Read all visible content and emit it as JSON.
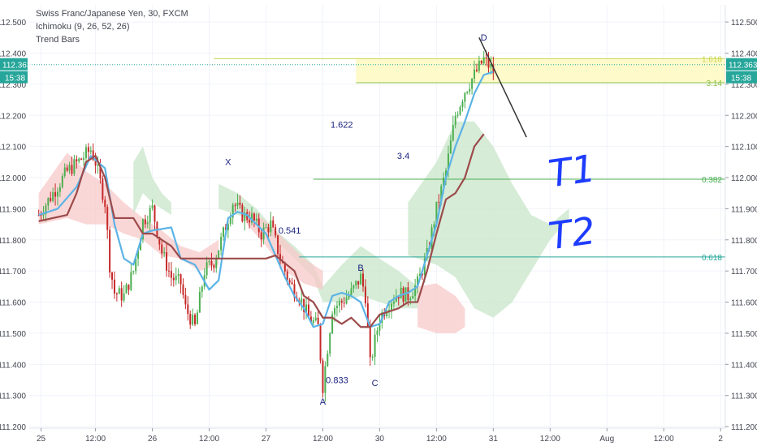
{
  "chart_data": {
    "type": "candlestick",
    "title": "Swiss Franc/Japanese Yen, 30, FXCM",
    "indicators": [
      "Ichimoku (9, 26, 52, 26)",
      "Trend Bars"
    ],
    "ylim": [
      111.195,
      112.555
    ],
    "y_ticks": [
      111.2,
      111.3,
      111.4,
      111.5,
      111.6,
      111.7,
      111.8,
      111.9,
      112.0,
      112.1,
      112.2,
      112.3,
      112.4,
      112.5
    ],
    "y_tick_labels": [
      "111.200",
      "111.300",
      "111.400",
      "111.500",
      "111.600",
      "111.700",
      "111.800",
      "111.900",
      "112.000",
      "112.100",
      "112.200",
      "112.300",
      "112.400",
      "112.500"
    ],
    "x_ticks": [
      {
        "label": "25",
        "t": 0.5
      },
      {
        "label": "12:00",
        "t": 12
      },
      {
        "label": "26",
        "t": 24
      },
      {
        "label": "12:00",
        "t": 36
      },
      {
        "label": "27",
        "t": 48
      },
      {
        "label": "12:00",
        "t": 60
      },
      {
        "label": "30",
        "t": 72
      },
      {
        "label": "12:00",
        "t": 84
      },
      {
        "label": "31",
        "t": 96
      },
      {
        "label": "12:00",
        "t": 108
      },
      {
        "label": "Aug",
        "t": 120
      },
      {
        "label": "12:00",
        "t": 132
      },
      {
        "label": "2",
        "t": 144
      }
    ],
    "xlim": [
      -2,
      145
    ],
    "current_price": {
      "value": 112.363,
      "label": "112.363",
      "time_label": "15:38",
      "color": "#26a69a"
    },
    "series": [
      {
        "name": "tenkan",
        "color": "#5cb3e6",
        "points": [
          [
            0,
            111.88
          ],
          [
            4,
            111.9
          ],
          [
            8,
            111.97
          ],
          [
            11,
            112.07
          ],
          [
            14,
            112.03
          ],
          [
            16,
            111.85
          ],
          [
            18,
            111.74
          ],
          [
            20,
            111.72
          ],
          [
            22,
            111.82
          ],
          [
            24,
            111.83
          ],
          [
            28,
            111.84
          ],
          [
            30,
            111.74
          ],
          [
            33,
            111.72
          ],
          [
            36,
            111.64
          ],
          [
            38,
            111.67
          ],
          [
            40,
            111.87
          ],
          [
            42,
            111.89
          ],
          [
            44,
            111.88
          ],
          [
            46,
            111.85
          ],
          [
            48,
            111.82
          ],
          [
            50,
            111.75
          ],
          [
            52,
            111.68
          ],
          [
            54,
            111.62
          ],
          [
            56,
            111.58
          ],
          [
            58,
            111.52
          ],
          [
            60,
            111.53
          ],
          [
            62,
            111.62
          ],
          [
            64,
            111.63
          ],
          [
            66,
            111.62
          ],
          [
            68,
            111.6
          ],
          [
            70,
            111.52
          ],
          [
            72,
            111.53
          ],
          [
            74,
            111.6
          ],
          [
            76,
            111.62
          ],
          [
            78,
            111.63
          ],
          [
            80,
            111.65
          ],
          [
            82,
            111.75
          ],
          [
            84,
            111.85
          ],
          [
            86,
            112.0
          ],
          [
            88,
            112.1
          ],
          [
            90,
            112.18
          ],
          [
            92,
            112.27
          ],
          [
            94,
            112.33
          ],
          [
            96,
            112.34
          ]
        ]
      },
      {
        "name": "kijun",
        "color": "#9c4a4a",
        "points": [
          [
            0,
            111.86
          ],
          [
            6,
            111.88
          ],
          [
            8,
            111.95
          ],
          [
            10,
            112.05
          ],
          [
            12,
            112.07
          ],
          [
            14,
            112.0
          ],
          [
            16,
            111.87
          ],
          [
            20,
            111.87
          ],
          [
            22,
            111.82
          ],
          [
            24,
            111.82
          ],
          [
            28,
            111.78
          ],
          [
            30,
            111.74
          ],
          [
            34,
            111.74
          ],
          [
            38,
            111.74
          ],
          [
            40,
            111.74
          ],
          [
            44,
            111.74
          ],
          [
            48,
            111.74
          ],
          [
            50,
            111.75
          ],
          [
            54,
            111.7
          ],
          [
            56,
            111.62
          ],
          [
            58,
            111.6
          ],
          [
            60,
            111.55
          ],
          [
            62,
            111.55
          ],
          [
            64,
            111.53
          ],
          [
            66,
            111.55
          ],
          [
            68,
            111.52
          ],
          [
            70,
            111.52
          ],
          [
            72,
            111.56
          ],
          [
            76,
            111.58
          ],
          [
            78,
            111.6
          ],
          [
            80,
            111.6
          ],
          [
            82,
            111.7
          ],
          [
            84,
            111.82
          ],
          [
            86,
            111.93
          ],
          [
            88,
            111.95
          ],
          [
            90,
            112.0
          ],
          [
            92,
            112.1
          ],
          [
            94,
            112.14
          ]
        ]
      }
    ],
    "cloud": {
      "bull_color": "#c8e6c9",
      "bear_color": "#f8c9c9",
      "segments": [
        {
          "kind": "bear",
          "top": [
            [
              0,
              111.95
            ],
            [
              6,
              112.08
            ],
            [
              10,
              112.02
            ],
            [
              14,
              111.98
            ],
            [
              18,
              111.92
            ],
            [
              22,
              111.87
            ],
            [
              26,
              111.83
            ],
            [
              30,
              111.78
            ],
            [
              34,
              111.76
            ],
            [
              38,
              111.8
            ]
          ],
          "bottom": [
            [
              0,
              111.85
            ],
            [
              6,
              111.87
            ],
            [
              10,
              111.85
            ],
            [
              14,
              111.85
            ],
            [
              18,
              111.82
            ],
            [
              22,
              111.8
            ],
            [
              26,
              111.75
            ],
            [
              30,
              111.74
            ],
            [
              34,
              111.7
            ],
            [
              38,
              111.72
            ]
          ]
        },
        {
          "kind": "bull",
          "top": [
            [
              20,
              112.05
            ],
            [
              22,
              112.1
            ],
            [
              24,
              112.0
            ],
            [
              26,
              111.95
            ],
            [
              28,
              111.92
            ]
          ],
          "bottom": [
            [
              20,
              111.88
            ],
            [
              22,
              111.95
            ],
            [
              24,
              111.92
            ],
            [
              26,
              111.9
            ],
            [
              28,
              111.88
            ]
          ]
        },
        {
          "kind": "bull",
          "top": [
            [
              38,
              111.98
            ],
            [
              42,
              111.95
            ],
            [
              46,
              111.9
            ],
            [
              50,
              111.83
            ],
            [
              54,
              111.78
            ],
            [
              58,
              111.72
            ],
            [
              60,
              111.65
            ]
          ],
          "bottom": [
            [
              38,
              111.9
            ],
            [
              42,
              111.88
            ],
            [
              46,
              111.86
            ],
            [
              50,
              111.8
            ],
            [
              54,
              111.74
            ],
            [
              58,
              111.68
            ],
            [
              60,
              111.6
            ]
          ]
        },
        {
          "kind": "bear",
          "top": [
            [
              44,
              111.9
            ],
            [
              48,
              111.86
            ],
            [
              52,
              111.8
            ],
            [
              56,
              111.74
            ],
            [
              60,
              111.7
            ]
          ],
          "bottom": [
            [
              44,
              111.85
            ],
            [
              48,
              111.78
            ],
            [
              52,
              111.7
            ],
            [
              56,
              111.66
            ],
            [
              60,
              111.64
            ]
          ]
        },
        {
          "kind": "bull",
          "top": [
            [
              60,
              111.65
            ],
            [
              64,
              111.72
            ],
            [
              68,
              111.78
            ],
            [
              72,
              111.74
            ],
            [
              76,
              111.7
            ],
            [
              80,
              111.65
            ]
          ],
          "bottom": [
            [
              60,
              111.6
            ],
            [
              64,
              111.6
            ],
            [
              68,
              111.62
            ],
            [
              72,
              111.6
            ],
            [
              76,
              111.58
            ],
            [
              80,
              111.58
            ]
          ]
        },
        {
          "kind": "bear",
          "top": [
            [
              80,
              111.65
            ],
            [
              84,
              111.66
            ],
            [
              88,
              111.62
            ],
            [
              90,
              111.58
            ]
          ],
          "bottom": [
            [
              80,
              111.52
            ],
            [
              84,
              111.5
            ],
            [
              88,
              111.5
            ],
            [
              90,
              111.52
            ]
          ]
        },
        {
          "kind": "bull",
          "top": [
            [
              78,
              111.92
            ],
            [
              84,
              112.05
            ],
            [
              88,
              112.18
            ],
            [
              92,
              112.18
            ],
            [
              96,
              112.1
            ],
            [
              100,
              111.98
            ],
            [
              104,
              111.88
            ],
            [
              108,
              111.85
            ],
            [
              112,
              111.9
            ]
          ],
          "bottom": [
            [
              78,
              111.75
            ],
            [
              84,
              111.72
            ],
            [
              88,
              111.68
            ],
            [
              92,
              111.58
            ],
            [
              96,
              111.55
            ],
            [
              100,
              111.6
            ],
            [
              104,
              111.7
            ],
            [
              108,
              111.8
            ],
            [
              112,
              111.87
            ]
          ]
        }
      ]
    },
    "candles_path": [
      [
        0,
        111.88
      ],
      [
        3,
        111.95
      ],
      [
        6,
        112.02
      ],
      [
        9,
        112.06
      ],
      [
        11,
        112.09
      ],
      [
        12,
        112.05
      ],
      [
        14,
        111.92
      ],
      [
        15,
        111.72
      ],
      [
        16,
        111.63
      ],
      [
        18,
        111.62
      ],
      [
        20,
        111.7
      ],
      [
        22,
        111.86
      ],
      [
        24,
        111.9
      ],
      [
        26,
        111.76
      ],
      [
        28,
        111.68
      ],
      [
        30,
        111.66
      ],
      [
        31,
        111.58
      ],
      [
        33,
        111.52
      ],
      [
        35,
        111.7
      ],
      [
        37,
        111.73
      ],
      [
        39,
        111.82
      ],
      [
        41,
        111.92
      ],
      [
        43,
        111.88
      ],
      [
        45,
        111.87
      ],
      [
        47,
        111.82
      ],
      [
        49,
        111.85
      ],
      [
        51,
        111.74
      ],
      [
        53,
        111.66
      ],
      [
        55,
        111.62
      ],
      [
        57,
        111.55
      ],
      [
        59,
        111.52
      ],
      [
        60,
        111.33
      ],
      [
        62,
        111.58
      ],
      [
        64,
        111.6
      ],
      [
        66,
        111.63
      ],
      [
        68,
        111.68
      ],
      [
        69,
        111.62
      ],
      [
        70,
        111.4
      ],
      [
        72,
        111.55
      ],
      [
        74,
        111.6
      ],
      [
        76,
        111.63
      ],
      [
        78,
        111.62
      ],
      [
        80,
        111.66
      ],
      [
        82,
        111.75
      ],
      [
        84,
        111.9
      ],
      [
        86,
        112.02
      ],
      [
        88,
        112.2
      ],
      [
        90,
        112.28
      ],
      [
        92,
        112.33
      ],
      [
        94,
        112.38
      ],
      [
        95,
        112.36
      ],
      [
        96,
        112.34
      ]
    ],
    "fib_zone": {
      "from_t": 67,
      "to_t": 146,
      "top": 112.38,
      "bottom": 112.305,
      "color": "#fff9c4"
    },
    "levels": [
      {
        "label": "1.618",
        "value": 112.382,
        "from_t": 37,
        "color": "#c6d64a"
      },
      {
        "label": "3.14",
        "value": 112.305,
        "from_t": 67,
        "color": "#8bc34a"
      },
      {
        "label": "0.382",
        "value": 111.995,
        "from_t": 58,
        "color": "#4caf50"
      },
      {
        "label": "0.618",
        "value": 111.745,
        "from_t": 55,
        "color": "#26a69a"
      }
    ],
    "annotations": [
      {
        "text": "X",
        "t": 40,
        "v": 112.04,
        "color": "#1a237e"
      },
      {
        "text": "A",
        "t": 60,
        "v": 111.27,
        "color": "#1a237e"
      },
      {
        "text": "B",
        "t": 68,
        "v": 111.7,
        "color": "#1a237e"
      },
      {
        "text": "C",
        "t": 71,
        "v": 111.33,
        "color": "#1a237e"
      },
      {
        "text": "D",
        "t": 94,
        "v": 112.44,
        "color": "#1a237e"
      },
      {
        "text": "0.541",
        "t": 53,
        "v": 111.82,
        "color": "#1a237e"
      },
      {
        "text": "0.833",
        "t": 63,
        "v": 111.34,
        "color": "#1a237e"
      },
      {
        "text": "1.622",
        "t": 64,
        "v": 112.16,
        "color": "#1a237e"
      },
      {
        "text": "3.4",
        "t": 77,
        "v": 112.06,
        "color": "#1a237e"
      }
    ],
    "trend_line": {
      "points": [
        [
          93,
          112.45
        ],
        [
          103,
          112.13
        ]
      ],
      "color": "#333333"
    },
    "handwriting": [
      {
        "text": "T1",
        "t": 113,
        "v": 111.98,
        "color": "#1e3cff"
      },
      {
        "text": "T2",
        "t": 113,
        "v": 111.78,
        "color": "#1e3cff"
      }
    ]
  }
}
